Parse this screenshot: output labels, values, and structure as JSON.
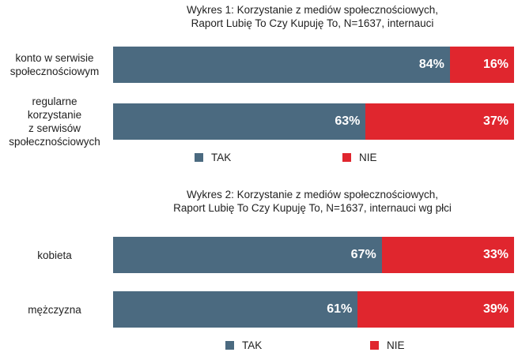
{
  "colors": {
    "tak": "#4b6a80",
    "nie": "#e0262e"
  },
  "chart_data": [
    {
      "type": "bar",
      "orientation": "horizontal",
      "stacked": true,
      "title_lines": [
        "Wykres 1: Korzystanie z mediów społecznościowych,",
        "Raport Lubię To Czy Kupuję To, N=1637, internauci"
      ],
      "categories": [
        "konto w serwisie\nspołecznościowym",
        "regularne\nkorzystanie\nz serwisów\nspołecznościowych"
      ],
      "series": [
        {
          "name": "TAK",
          "values": [
            84,
            63
          ],
          "labels": [
            "84%",
            "63%"
          ]
        },
        {
          "name": "NIE",
          "values": [
            16,
            37
          ],
          "labels": [
            "16%",
            "37%"
          ]
        }
      ],
      "xlim": [
        0,
        100
      ],
      "unit": "%",
      "legend_position": "bottom"
    },
    {
      "type": "bar",
      "orientation": "horizontal",
      "stacked": true,
      "title_lines": [
        "Wykres 2: Korzystanie z mediów społecznościowych,",
        "Raport Lubię To Czy Kupuję To, N=1637, internauci wg płci"
      ],
      "categories": [
        "kobieta",
        "mężczyzna"
      ],
      "series": [
        {
          "name": "TAK",
          "values": [
            67,
            61
          ],
          "labels": [
            "67%",
            "61%"
          ]
        },
        {
          "name": "NIE",
          "values": [
            33,
            39
          ],
          "labels": [
            "33%",
            "39%"
          ]
        }
      ],
      "xlim": [
        0,
        100
      ],
      "unit": "%",
      "legend_position": "bottom"
    }
  ]
}
